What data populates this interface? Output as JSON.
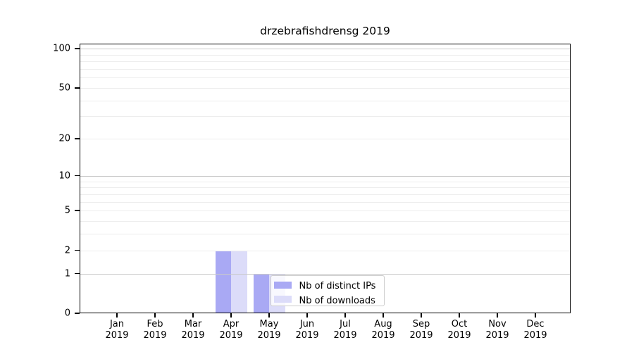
{
  "chart_data": {
    "type": "bar",
    "title": "drzebrafishdrensg 2019",
    "categories": [
      "Jan",
      "Feb",
      "Mar",
      "Apr",
      "May",
      "Jun",
      "Jul",
      "Aug",
      "Sep",
      "Oct",
      "Nov",
      "Dec"
    ],
    "x_year": "2019",
    "series": [
      {
        "name": "Nb of distinct IPs",
        "color": "#a9a9f4",
        "values": [
          0,
          0,
          0,
          2,
          1,
          0,
          0,
          0,
          0,
          0,
          0,
          0
        ]
      },
      {
        "name": "Nb of downloads",
        "color": "#dcdcf9",
        "values": [
          0,
          0,
          0,
          2,
          1,
          0,
          0,
          0,
          0,
          0,
          0,
          0
        ]
      }
    ],
    "y_scale": "log10(value+1)",
    "y_ticks": [
      0,
      1,
      2,
      5,
      10,
      20,
      50,
      100
    ],
    "y_tick_labels": [
      "0",
      "1",
      "2",
      "5",
      "10",
      "20",
      "50",
      "100"
    ],
    "y_major_gridlines": [
      1,
      10,
      100
    ],
    "y_minor_gridlines": [
      2,
      3,
      4,
      5,
      6,
      7,
      8,
      9,
      20,
      30,
      40,
      50,
      60,
      70,
      80,
      90
    ],
    "ylim": [
      0,
      110
    ],
    "grid": "horizontal",
    "legend_position": "inside lower center",
    "colors": {
      "major_grid": "#c9c9c9",
      "minor_grid": "#ededed",
      "axis": "#000000",
      "legend_border": "#cccccc",
      "text": "#000000",
      "background": "#ffffff"
    }
  },
  "legend": {
    "items": [
      {
        "label": "Nb of distinct IPs",
        "color": "#a9a9f4"
      },
      {
        "label": "Nb of downloads",
        "color": "#dcdcf9"
      }
    ]
  }
}
